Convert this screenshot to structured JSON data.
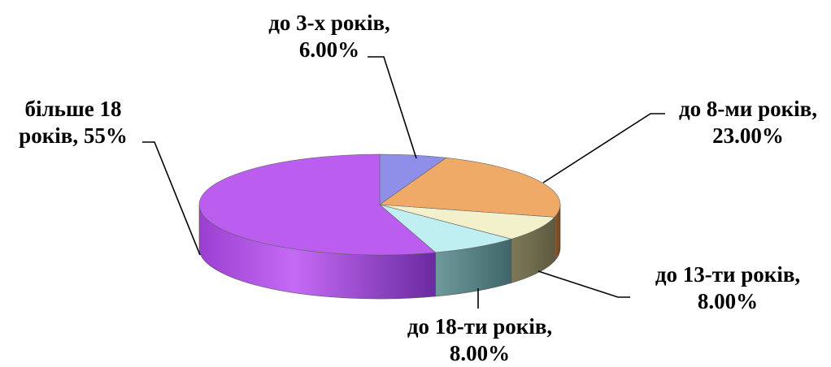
{
  "chart_data": {
    "type": "pie",
    "three_d": true,
    "legend": "none",
    "slices": [
      {
        "label_line1": "до 3-х років,",
        "label_line2": "6.00%",
        "value": 6,
        "color": "#8f8fea"
      },
      {
        "label_line1": "до 8-ми років,",
        "label_line2": "23.00%",
        "value": 23,
        "color": "#eeaa66"
      },
      {
        "label_line1": "до 13-ти років,",
        "label_line2": "8.00%",
        "value": 8,
        "color": "#f3f0cc"
      },
      {
        "label_line1": "до 18-ти років,",
        "label_line2": "8.00%",
        "value": 8,
        "color": "#bfeff0"
      },
      {
        "label_line1": "більше 18",
        "label_line2": "років, 55%",
        "value": 55,
        "color": "#bb5ef0"
      }
    ]
  }
}
